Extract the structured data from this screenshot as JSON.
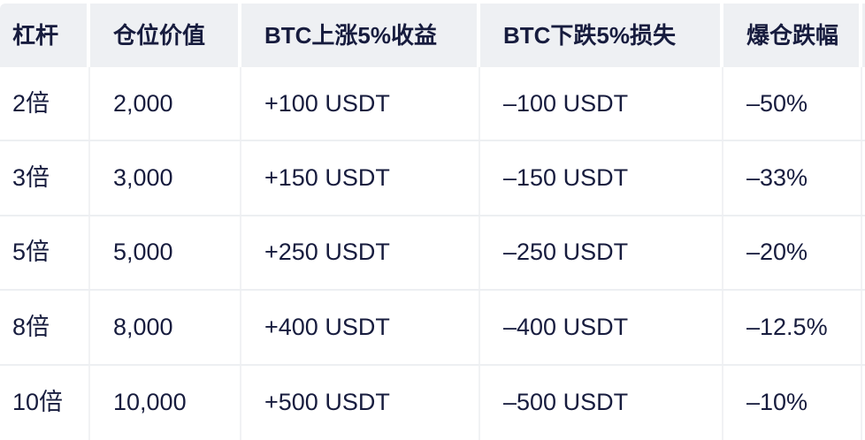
{
  "chart_data": {
    "type": "table",
    "columns": [
      "杠杆",
      "仓位价值",
      "BTC上涨5%收益",
      "BTC下跌5%损失",
      "爆仓跌幅"
    ],
    "rows": [
      [
        "2倍",
        "2,000",
        "+100 USDT",
        "–100 USDT",
        "–50%"
      ],
      [
        "3倍",
        "3,000",
        "+150 USDT",
        "–150 USDT",
        "–33%"
      ],
      [
        "5倍",
        "5,000",
        "+250 USDT",
        "–250 USDT",
        "–20%"
      ],
      [
        "8倍",
        "8,000",
        "+400 USDT",
        "–400 USDT",
        "–12.5%"
      ],
      [
        "10倍",
        "10,000",
        "+500 USDT",
        "–500 USDT",
        "–10%"
      ]
    ],
    "layout": {
      "header_position": "top",
      "grid": "light row and column dividers",
      "right_edge_truncated": true
    }
  },
  "colors": {
    "page_bg": "#ffffff",
    "header_bg": "#eef0f3",
    "text": "#171c3e",
    "row_divider": "#edeff2",
    "column_divider": "#f1f2f4"
  }
}
